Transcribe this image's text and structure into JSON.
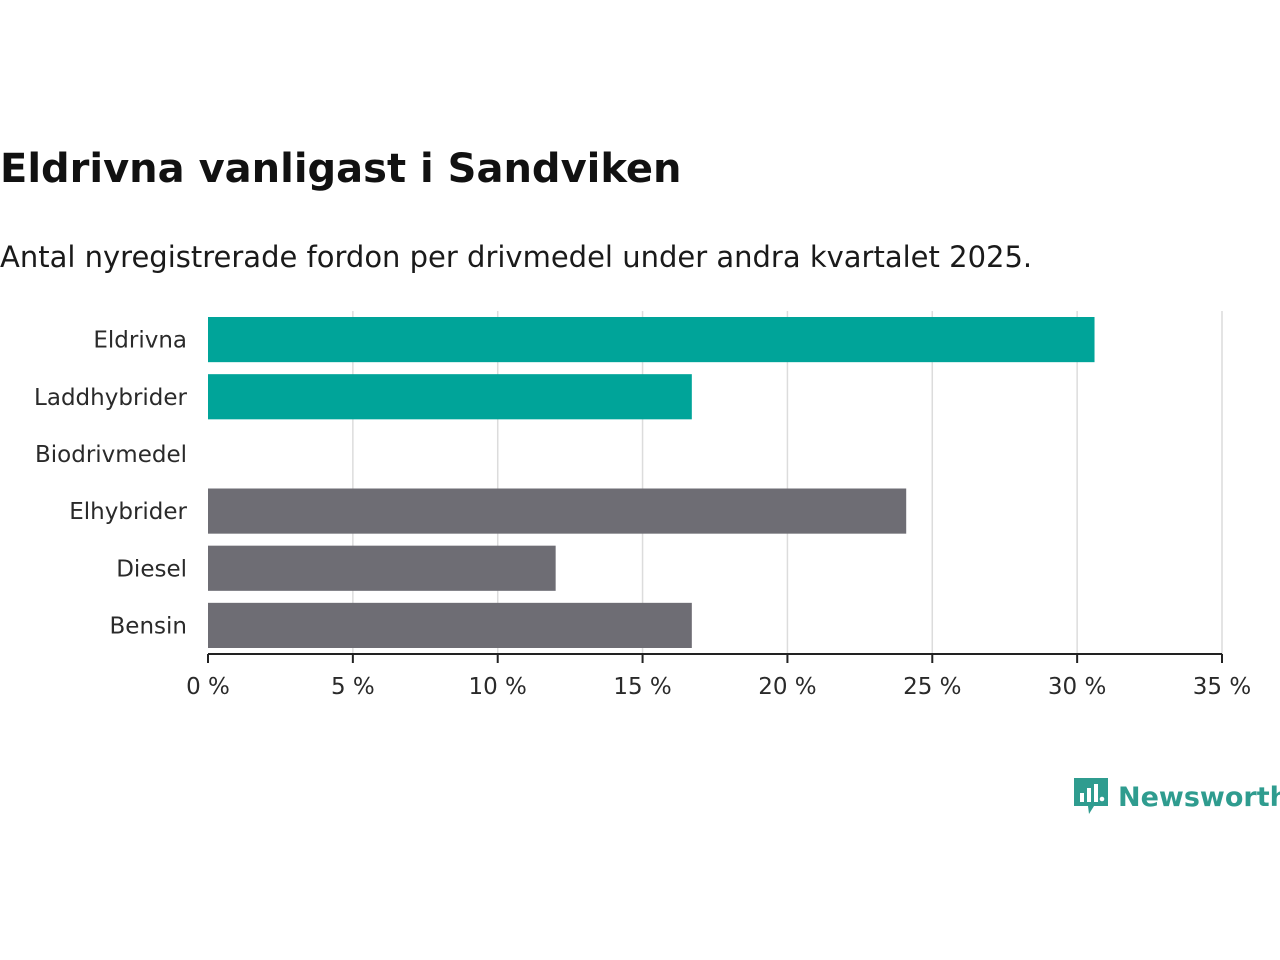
{
  "chart_data": {
    "type": "bar",
    "orientation": "horizontal",
    "title": "Eldrivna vanligast i Sandviken",
    "subtitle": "Antal nyregistrerade fordon per drivmedel under andra kvartalet 2025.",
    "categories": [
      "Eldrivna",
      "Laddhybrider",
      "Biodrivmedel",
      "Elhybrider",
      "Diesel",
      "Bensin"
    ],
    "values": [
      30.6,
      16.7,
      0,
      24.1,
      12.0,
      16.7
    ],
    "colors": [
      "#00a499",
      "#00a499",
      "#00a499",
      "#6e6d74",
      "#6e6d74",
      "#6e6d74"
    ],
    "xlim": [
      0,
      35
    ],
    "xticks": [
      0,
      5,
      10,
      15,
      20,
      25,
      30,
      35
    ],
    "tick_suffix": " %",
    "grid": true,
    "legend": "none"
  },
  "branding": {
    "logo_text": "Newsworthy",
    "logo_icon": "newsworthy-chart-icon",
    "color": "#2f9c8f"
  }
}
